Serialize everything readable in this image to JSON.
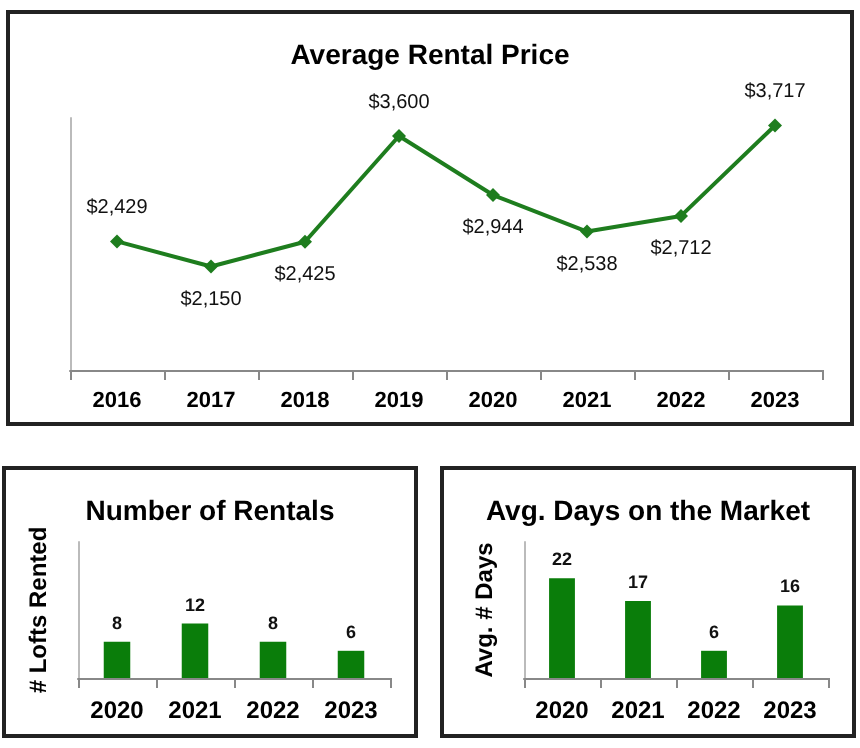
{
  "chart_data": [
    {
      "type": "line",
      "title": "Average Rental Price",
      "categories": [
        "2016",
        "2017",
        "2018",
        "2019",
        "2020",
        "2021",
        "2022",
        "2023"
      ],
      "series": [
        {
          "color": "#1e7d1e",
          "values": [
            2429,
            2150,
            2425,
            3600,
            2944,
            2538,
            2712,
            3717
          ],
          "value_labels": [
            "$2,429",
            "$2,150",
            "$2,425",
            "$3,600",
            "$2,944",
            "$2,538",
            "$2,712",
            "$3,717"
          ]
        }
      ],
      "ylim": [
        1000,
        3800
      ],
      "tick_labels": "x",
      "marker": "diamond",
      "line_style": "solid"
    },
    {
      "type": "bar",
      "title": "Number of Rentals",
      "ylabel": "# Lofts Rented",
      "categories": [
        "2020",
        "2021",
        "2022",
        "2023"
      ],
      "series": [
        {
          "color": "#0a7d0a",
          "values": [
            8,
            12,
            8,
            6
          ]
        }
      ],
      "ylim": [
        0,
        30
      ],
      "tick_labels": "x",
      "data_labels": true
    },
    {
      "type": "bar",
      "title": "Avg. Days on the Market",
      "ylabel": "Avg. # Days",
      "categories": [
        "2020",
        "2021",
        "2022",
        "2023"
      ],
      "series": [
        {
          "color": "#0a7d0a",
          "values": [
            22,
            17,
            6,
            16
          ]
        }
      ],
      "ylim": [
        0,
        30
      ],
      "tick_labels": "x",
      "data_labels": true
    }
  ]
}
